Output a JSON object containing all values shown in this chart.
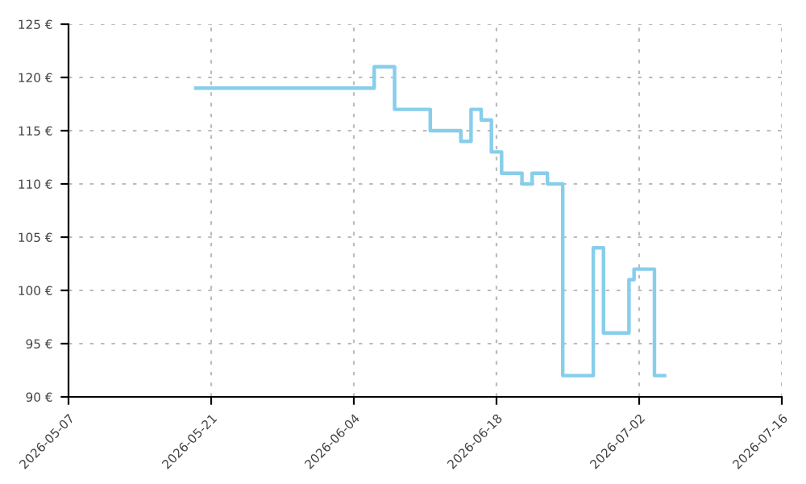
{
  "chart_data": {
    "type": "step",
    "color": "#87ceeb",
    "x": [
      "2026-05-19T12:00",
      "2026-06-06",
      "2026-06-08",
      "2026-06-11T12:00",
      "2026-06-14T12:00",
      "2026-06-15T12:00",
      "2026-06-16T12:00",
      "2026-06-17T12:00",
      "2026-06-18T12:00",
      "2026-06-20T12:00",
      "2026-06-21T12:00",
      "2026-06-23",
      "2026-06-24T12:00",
      "2026-06-27T12:00",
      "2026-06-28T12:00",
      "2026-07-01",
      "2026-07-01T12:00",
      "2026-07-03T12:00",
      "2026-07-04T12:00"
    ],
    "values": [
      119,
      121,
      117,
      115,
      114,
      117,
      116,
      113,
      111,
      110,
      111,
      110,
      92,
      104,
      96,
      101,
      102,
      92,
      92
    ],
    "xlim": [
      "2026-05-07",
      "2026-07-16"
    ],
    "xticks": [
      "2026-05-07",
      "2026-05-21",
      "2026-06-04",
      "2026-06-18",
      "2026-07-02",
      "2026-07-16"
    ],
    "ylim": [
      90,
      125
    ],
    "yticks": [
      {
        "value": 90,
        "label": "90 €"
      },
      {
        "value": 95,
        "label": "95 €"
      },
      {
        "value": 100,
        "label": "100 €"
      },
      {
        "value": 105,
        "label": "105 €"
      },
      {
        "value": 110,
        "label": "110 €"
      },
      {
        "value": 115,
        "label": "115 €"
      },
      {
        "value": 120,
        "label": "120 €"
      },
      {
        "value": 125,
        "label": "125 €"
      }
    ],
    "grid": true
  }
}
